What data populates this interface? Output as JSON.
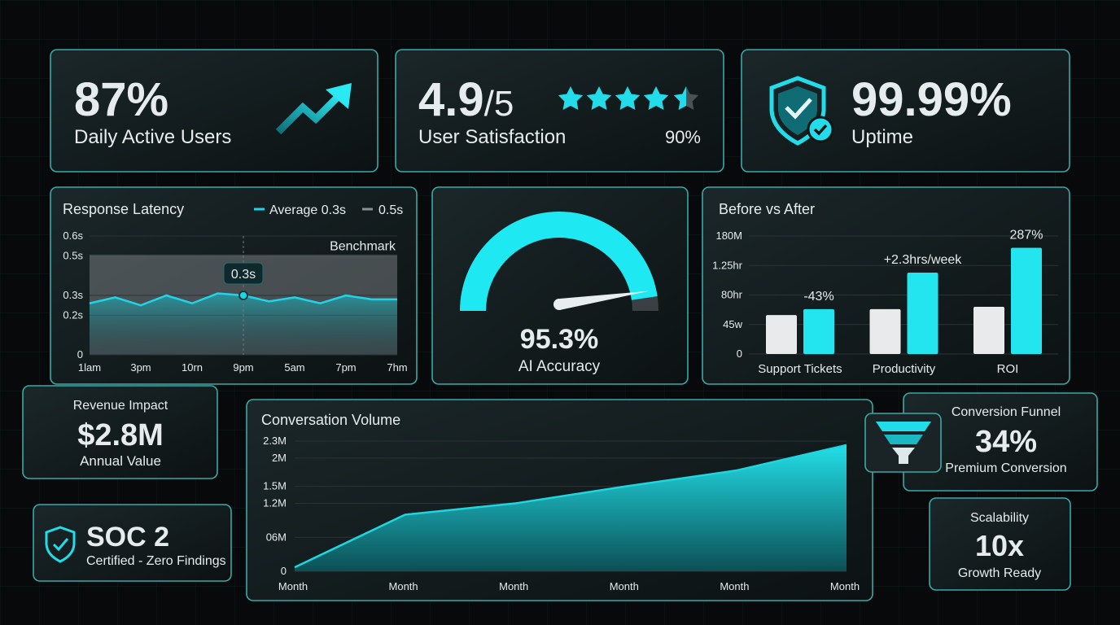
{
  "cards": {
    "daily_active_users": {
      "value": "87%",
      "label": "Daily Active Users"
    },
    "user_satisfaction": {
      "value": "4.9",
      "scale": "/5",
      "label": "User Satisfaction",
      "note": "90%"
    },
    "uptime": {
      "value": "99.99%",
      "label": "Uptime"
    },
    "revenue_impact": {
      "title": "Revenue Impact",
      "value": "$2.8M",
      "label": "Annual Value"
    },
    "soc2": {
      "title": "SOC 2",
      "label": "Certified - Zero Findings"
    },
    "conversion_funnel": {
      "title": "Conversion Funnel",
      "value": "34%",
      "label": "Premium Conversion"
    },
    "scalability": {
      "title": "Scalability",
      "value": "10x",
      "label": "Growth Ready"
    }
  },
  "chart_data": [
    {
      "type": "line",
      "title": "Response Latency",
      "categories": [
        "1lam",
        null,
        "3pm",
        null,
        "10rn",
        null,
        "9pm",
        null,
        "5am",
        null,
        "7pm",
        null,
        "7hm"
      ],
      "series": [
        {
          "name": "Average 0.3s",
          "color": "#22d3e6",
          "values": [
            0.26,
            0.29,
            0.25,
            0.3,
            0.26,
            0.31,
            0.3,
            0.27,
            0.29,
            0.26,
            0.3,
            0.28,
            0.28
          ],
          "value_labels": [
            null,
            null,
            null,
            null,
            null,
            null,
            "0.3s",
            null,
            null,
            null,
            null,
            null,
            null
          ]
        }
      ],
      "benchmark": {
        "name": "0.5s",
        "label": "Benchmark",
        "value": 0.5,
        "color": "#8a8f93"
      },
      "ylim": [
        0,
        0.6
      ],
      "yticks": [
        {
          "value": 0.6,
          "label": "0.6s"
        },
        {
          "value": 0.5,
          "label": "0.5s"
        },
        {
          "value": 0.3,
          "label": "0.3s"
        },
        {
          "value": 0.2,
          "label": "0.2s"
        },
        0
      ],
      "grid": true
    },
    {
      "type": "gauge",
      "title": "AI Accuracy",
      "values": [
        95.3
      ],
      "value_labels": [
        "95.3%"
      ],
      "ylim": [
        0,
        100
      ],
      "color": "#1ee8f2"
    },
    {
      "type": "bar",
      "title": "Before vs After",
      "categories": [
        "Support Tickets",
        "Productivity",
        "ROI"
      ],
      "series": [
        {
          "color": "#e8eaeb",
          "values": [
            33,
            38,
            40
          ]
        },
        {
          "color": "#22e5f0",
          "values": [
            38,
            69,
            90
          ]
        }
      ],
      "annotations": [
        "-43%",
        "+2.3hrs/week",
        "287%"
      ],
      "annotation_colors": [
        "#ff6b6b",
        "#22d3e6",
        "#22d3e6"
      ],
      "ylim": [
        0,
        100
      ],
      "yticks": [
        {
          "value": 100,
          "label": "180M"
        },
        {
          "value": 75,
          "label": "1.25hr"
        },
        {
          "value": 50,
          "label": "80hr"
        },
        {
          "value": 25,
          "label": "45w"
        },
        0
      ],
      "grid": true
    },
    {
      "type": "area",
      "title": "Conversation Volume",
      "categories": [
        "Month",
        "Month",
        "Month",
        "Month",
        "Month",
        "Month"
      ],
      "values": [
        0.07,
        1.0,
        1.2,
        1.5,
        1.78,
        2.23
      ],
      "color": "#1fd6e0",
      "ylim": [
        0,
        2.3
      ],
      "yticks": [
        {
          "value": 2.3,
          "label": "2.3M"
        },
        {
          "value": 2,
          "label": "2M"
        },
        {
          "value": 1.5,
          "label": "1.5M"
        },
        {
          "value": 1.2,
          "label": "1.2M"
        },
        {
          "value": 0.6,
          "label": "06M"
        },
        0
      ],
      "grid": true
    }
  ]
}
